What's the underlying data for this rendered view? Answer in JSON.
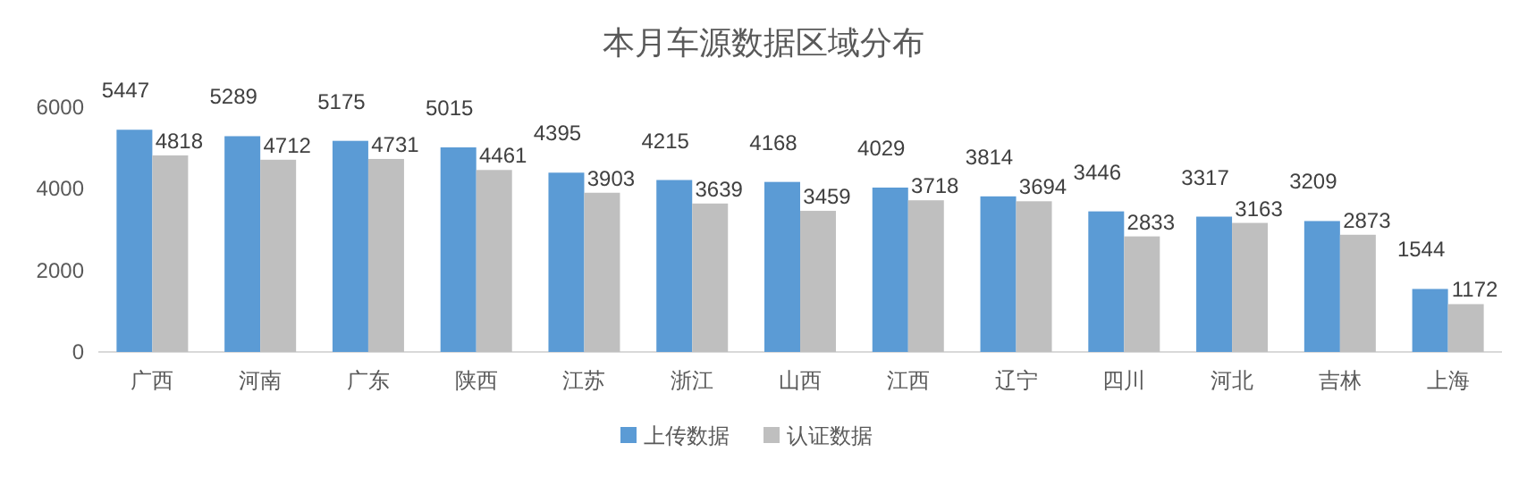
{
  "chart_data": {
    "type": "bar",
    "title": "本月车源数据区域分布",
    "categories": [
      "广西",
      "河南",
      "广东",
      "陕西",
      "江苏",
      "浙江",
      "山西",
      "江西",
      "辽宁",
      "四川",
      "河北",
      "吉林",
      "上海"
    ],
    "series": [
      {
        "name": "上传数据",
        "color": "#5b9bd5",
        "values": [
          5447,
          5289,
          5175,
          5015,
          4395,
          4215,
          4168,
          4029,
          3814,
          3446,
          3317,
          3209,
          1544
        ]
      },
      {
        "name": "认证数据",
        "color": "#bfbfbf",
        "values": [
          4818,
          4712,
          4731,
          4461,
          3903,
          3639,
          3459,
          3718,
          3694,
          2833,
          3163,
          2873,
          1172
        ]
      }
    ],
    "ylim": [
      0,
      6000
    ],
    "yticks": [
      0,
      2000,
      4000,
      6000
    ],
    "grid": false,
    "legend": "bottom",
    "data_labels": true
  }
}
